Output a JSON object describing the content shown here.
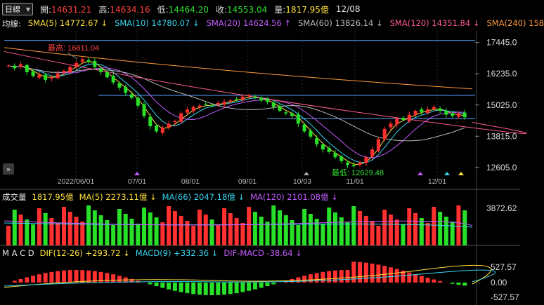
{
  "header": {
    "period": "日線",
    "open_label": "開:",
    "open": "14631.21",
    "high_label": "高:",
    "high": "14634.16",
    "low_label": "低:",
    "low": "14464.20",
    "close_label": "收:",
    "close": "14553.04",
    "volume_label": "量:",
    "volume": "1817.95億",
    "date": "12/08"
  },
  "ma_legend": {
    "title": "均線:",
    "items": [
      {
        "text": "SMA(5) 14772.67 ↓",
        "color": "#ffe23a"
      },
      {
        "text": "SMA(10) 14780.07 ↓",
        "color": "#36d6f0"
      },
      {
        "text": "SMA(20) 14624.56 ↑",
        "color": "#c45bff"
      },
      {
        "text": "SMA(60) 13826.14 ↓",
        "color": "#b9b9b9"
      },
      {
        "text": "SMA(120) 14351.84 ↓",
        "color": "#ff5b8a"
      },
      {
        "text": "SMA(240) 158",
        "color": "#ff9a3c"
      }
    ]
  },
  "price_axis": [
    "17445.0",
    "16235.0",
    "15025.0",
    "13815.0",
    "12605.0"
  ],
  "date_axis": [
    "2022/06/01",
    "07/01",
    "08/01",
    "09/01",
    "10/03",
    "11/01",
    "12/01"
  ],
  "annotations": {
    "high_label": "最高: 16811.04",
    "low_label": "最低: 12629.48"
  },
  "volume_legend": {
    "title": "成交量",
    "items": [
      {
        "text": "1817.95億",
        "color": "#ffe23a"
      },
      {
        "text": "MA(5) 2273.11億 ↓",
        "color": "#ffe23a"
      },
      {
        "text": "MA(66) 2047.18億 ↓",
        "color": "#36d6f0"
      },
      {
        "text": "MA(120) 2101.08億 ↓",
        "color": "#c45bff"
      }
    ],
    "axis": [
      "3872.62"
    ]
  },
  "macd_legend": {
    "title": "M A C D",
    "items": [
      {
        "text": "DIF(12-26) +293.72 ↓",
        "color": "#ffe23a"
      },
      {
        "text": "MACD(9) +332.36 ↓",
        "color": "#36d6f0"
      },
      {
        "text": "DIF-MACD -38.64 ↓",
        "color": "#c45bff"
      }
    ],
    "axis": [
      "527.57",
      "0.00",
      "-527.57"
    ]
  },
  "colors": {
    "up": "#ff3030",
    "down": "#28e028",
    "grid": "#333333"
  },
  "chart_data": {
    "type": "candlestick",
    "price_ylim": [
      12300,
      17900
    ],
    "dates": [
      "2022/06/01",
      "07/01",
      "08/01",
      "09/01",
      "10/03",
      "11/01",
      "12/01"
    ],
    "closes": [
      16550,
      16450,
      16600,
      16300,
      16150,
      16200,
      16000,
      16100,
      16250,
      16350,
      16500,
      16650,
      16800,
      16700,
      16500,
      16300,
      16100,
      15900,
      15700,
      15500,
      15300,
      15000,
      14600,
      14200,
      14000,
      14150,
      14300,
      14400,
      14700,
      14850,
      14950,
      15000,
      15050,
      15000,
      15100,
      15150,
      15200,
      15250,
      15350,
      15400,
      15300,
      15200,
      15150,
      14950,
      14800,
      14700,
      14600,
      14300,
      14000,
      13800,
      13500,
      13300,
      13200,
      13000,
      12850,
      12700,
      12650,
      12800,
      13000,
      13300,
      13700,
      14100,
      14300,
      14500,
      14450,
      14650,
      14800,
      14750,
      14850,
      14950,
      14800,
      14650,
      14600,
      14700,
      14550
    ],
    "high": 16811.04,
    "low": 12629.48
  }
}
